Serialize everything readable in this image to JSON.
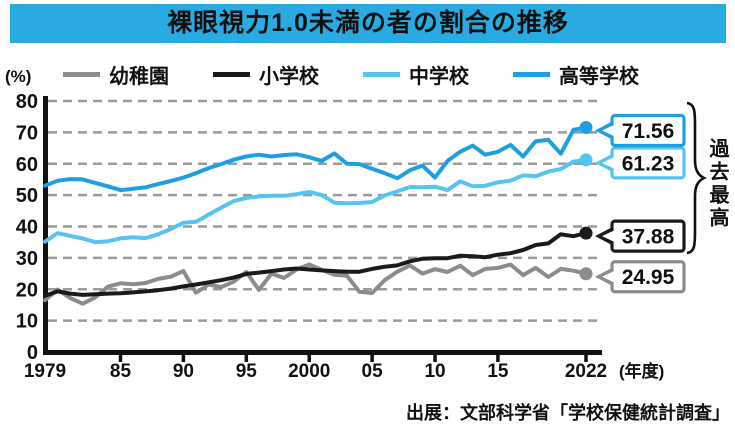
{
  "title": "裸眼視力1.0未満の者の割合の推移",
  "y_unit": "(%)",
  "annotation": "過去最高",
  "source": "出展：文部科学省「学校保健統計調査」",
  "colors": {
    "title_bg": "#29ABE2",
    "axis": "#111111",
    "grid": "#9B9B9B",
    "kindergarten": "#8C8C8C",
    "elementary": "#1A1A1A",
    "junior_high": "#56C4F0",
    "high_school": "#1E9FE2"
  },
  "legend": [
    {
      "label": "幼稚園",
      "color": "#8C8C8C"
    },
    {
      "label": "小学校",
      "color": "#1A1A1A"
    },
    {
      "label": "中学校",
      "color": "#56C4F0"
    },
    {
      "label": "高等学校",
      "color": "#1E9FE2"
    }
  ],
  "chart_data": {
    "type": "line",
    "title": "裸眼視力1.0未満の者の割合の推移",
    "ylabel": "(%)",
    "ylim": [
      0,
      80
    ],
    "ytick_step": 10,
    "grid": "horizontal-dashed",
    "legend_position": "top",
    "x_suffix": "(年度)",
    "x": [
      1979,
      1980,
      1981,
      1982,
      1983,
      1984,
      1985,
      1986,
      1987,
      1988,
      1989,
      1990,
      1991,
      1992,
      1993,
      1994,
      1995,
      1996,
      1997,
      1998,
      1999,
      2000,
      2001,
      2002,
      2003,
      2004,
      2005,
      2006,
      2007,
      2008,
      2009,
      2010,
      2011,
      2012,
      2013,
      2014,
      2015,
      2016,
      2017,
      2018,
      2019,
      2020,
      2021,
      2022
    ],
    "x_ticks": [
      {
        "year": 1979,
        "label": "1979",
        "tick": false
      },
      {
        "year": 1985,
        "label": "85",
        "tick": true
      },
      {
        "year": 1990,
        "label": "90",
        "tick": true
      },
      {
        "year": 1995,
        "label": "95",
        "tick": true
      },
      {
        "year": 2000,
        "label": "2000",
        "tick": true
      },
      {
        "year": 2005,
        "label": "05",
        "tick": true
      },
      {
        "year": 2010,
        "label": "10",
        "tick": true
      },
      {
        "year": 2015,
        "label": "15",
        "tick": true
      },
      {
        "year": 2022,
        "label": "2022",
        "tick": true
      }
    ],
    "series": [
      {
        "name": "幼稚園",
        "key": "kindergarten",
        "color": "#8C8C8C",
        "end_label": "24.95",
        "record_high": false,
        "values": [
          16.5,
          19.9,
          17.2,
          15.4,
          17.4,
          20.8,
          21.9,
          21.6,
          22.0,
          23.3,
          24.0,
          25.8,
          18.9,
          21.5,
          20.7,
          22.4,
          25.5,
          19.8,
          25.0,
          23.6,
          26.3,
          27.9,
          26.2,
          24.6,
          24.3,
          19.2,
          18.8,
          22.9,
          25.6,
          27.6,
          25.0,
          26.4,
          25.5,
          27.5,
          24.5,
          26.5,
          26.8,
          27.9,
          24.5,
          26.8,
          23.9,
          26.5,
          25.9,
          24.95
        ]
      },
      {
        "name": "小学校",
        "key": "elementary",
        "color": "#1A1A1A",
        "end_label": "37.88",
        "record_high": true,
        "values": [
          17.9,
          19.3,
          18.6,
          18.2,
          18.4,
          18.6,
          18.7,
          19.0,
          19.3,
          19.7,
          20.2,
          20.9,
          21.5,
          22.2,
          22.9,
          23.7,
          24.9,
          25.3,
          25.8,
          26.3,
          26.6,
          26.3,
          26.0,
          25.8,
          25.6,
          25.6,
          26.5,
          27.2,
          27.6,
          28.9,
          29.7,
          29.9,
          29.9,
          30.7,
          30.5,
          30.2,
          31.0,
          31.5,
          32.5,
          34.1,
          34.6,
          37.5,
          36.9,
          37.88
        ]
      },
      {
        "name": "中学校",
        "key": "junior-high",
        "color": "#56C4F0",
        "end_label": "61.23",
        "record_high": true,
        "values": [
          35.2,
          37.9,
          37.0,
          36.2,
          35.0,
          35.3,
          36.2,
          36.6,
          36.3,
          37.5,
          39.2,
          41.2,
          41.5,
          43.8,
          46.0,
          48.1,
          49.1,
          49.6,
          49.8,
          49.8,
          50.3,
          51.0,
          50.0,
          47.6,
          47.4,
          47.5,
          47.8,
          49.9,
          51.2,
          52.6,
          52.5,
          52.7,
          51.6,
          54.4,
          52.8,
          53.0,
          54.1,
          54.6,
          56.3,
          56.0,
          57.5,
          58.3,
          60.7,
          61.23
        ]
      },
      {
        "name": "高等学校",
        "key": "high-school",
        "color": "#1E9FE2",
        "end_label": "71.56",
        "record_high": true,
        "values": [
          53.0,
          54.6,
          55.1,
          55.0,
          53.9,
          52.8,
          51.6,
          52.0,
          52.5,
          53.5,
          54.5,
          55.6,
          57.0,
          58.6,
          59.9,
          61.3,
          62.3,
          62.9,
          62.3,
          62.8,
          63.0,
          62.1,
          60.9,
          63.3,
          60.0,
          59.9,
          58.4,
          57.0,
          55.4,
          57.9,
          59.4,
          55.6,
          60.9,
          63.8,
          65.8,
          62.9,
          63.8,
          66.0,
          62.3,
          67.2,
          67.6,
          63.2,
          70.8,
          71.56
        ]
      }
    ]
  }
}
